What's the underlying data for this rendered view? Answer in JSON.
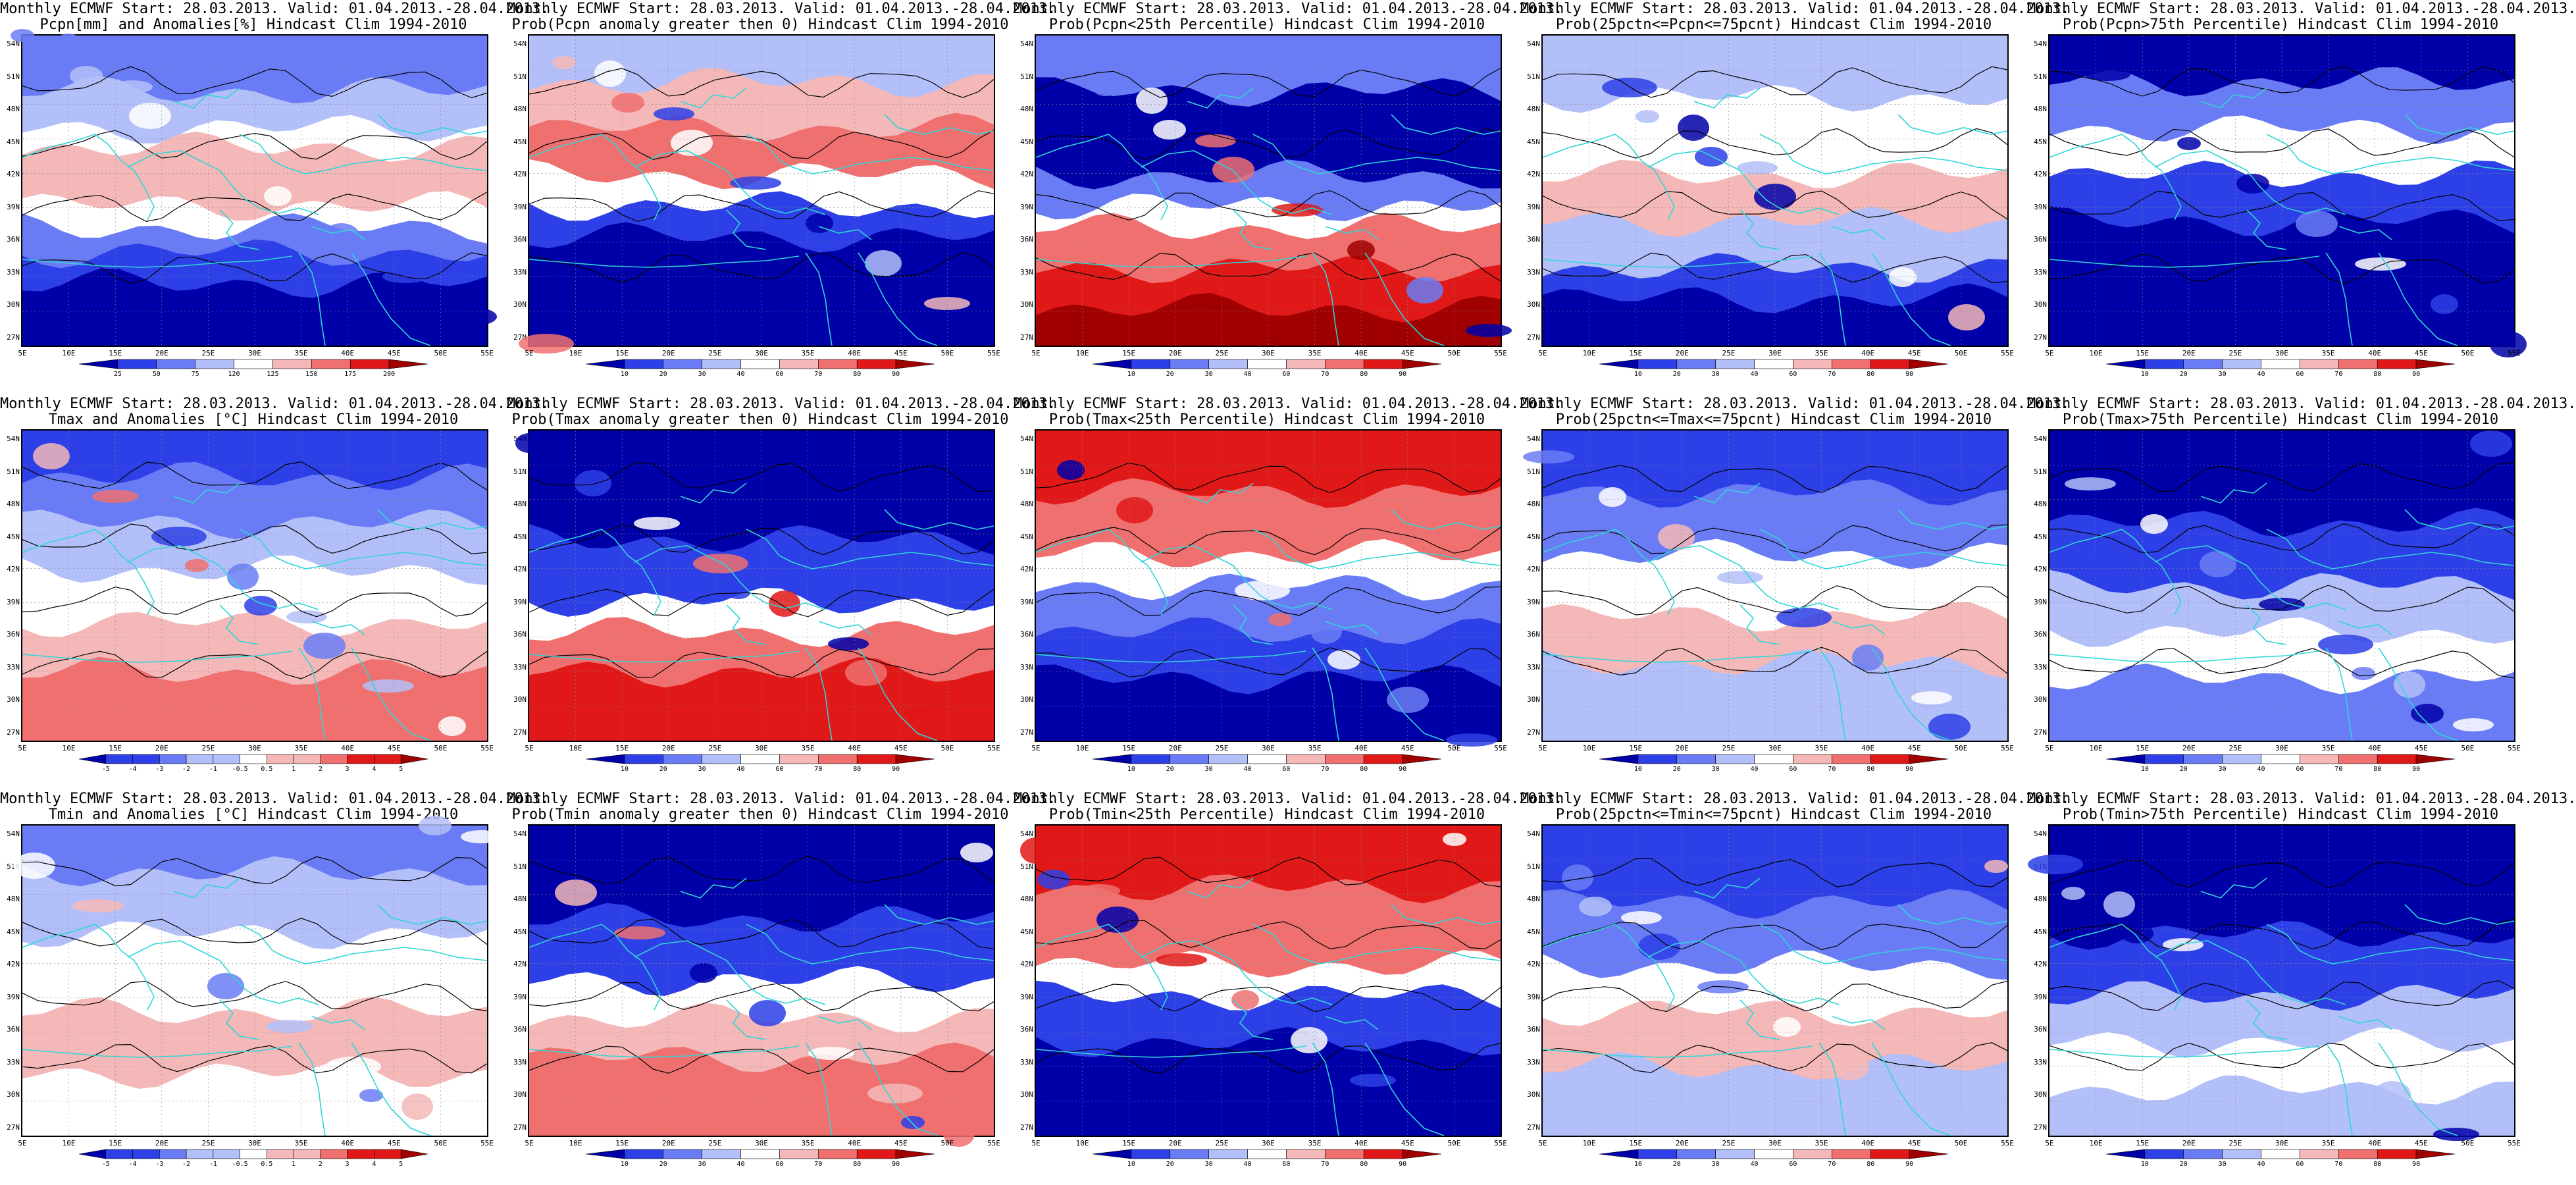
{
  "colors": {
    "deep_blue": "#0000a8",
    "blue": "#2d3fe6",
    "mid_blue": "#6a7cf5",
    "light_blue": "#b3bff8",
    "white": "#ffffff",
    "light_red": "#f5b8b8",
    "mid_red": "#f07070",
    "red": "#e01818",
    "dark_red": "#a00000",
    "coast": "#2fd6d6",
    "contour": "#000000"
  },
  "axes": {
    "lat_labels": [
      "54N",
      "51N",
      "48N",
      "45N",
      "42N",
      "39N",
      "36N",
      "33N",
      "30N",
      "27N"
    ],
    "lon_labels": [
      "5E",
      "10E",
      "15E",
      "20E",
      "25E",
      "30E",
      "35E",
      "40E",
      "45E",
      "50E",
      "55E"
    ]
  },
  "colorbars": {
    "pcpn": [
      "25",
      "50",
      "75",
      "120",
      "125",
      "150",
      "175",
      "200"
    ],
    "prob": [
      "10",
      "20",
      "30",
      "40",
      "60",
      "70",
      "80",
      "90"
    ],
    "temp": [
      "-5",
      "-4",
      "-3",
      "-2",
      "-1",
      "-0.5",
      "0.5",
      "1",
      "2",
      "3",
      "4",
      "5"
    ]
  },
  "panels": [
    {
      "t1": "Monthly ECMWF Start: 28.03.2013. Valid: 01.04.2013.-28.04.2013.",
      "t2": "Pcpn[mm] and Anomalies[%] Hindcast Clim 1994-2010",
      "cb": "pcpn",
      "pattern": "p0"
    },
    {
      "t1": "Monthly ECMWF Start: 28.03.2013. Valid: 01.04.2013.-28.04.2013.",
      "t2": "Prob(Pcpn anomaly greater then 0) Hindcast Clim 1994-2010",
      "cb": "prob",
      "pattern": "p1"
    },
    {
      "t1": "Monthly ECMWF Start: 28.03.2013. Valid: 01.04.2013.-28.04.2013.",
      "t2": "Prob(Pcpn<25th Percentile) Hindcast Clim 1994-2010",
      "cb": "prob",
      "pattern": "p2"
    },
    {
      "t1": "Monthly ECMWF Start: 28.03.2013. Valid: 01.04.2013.-28.04.2013.",
      "t2": "Prob(25pctn<=Pcpn<=75pcnt) Hindcast Clim 1994-2010",
      "cb": "prob",
      "pattern": "p3"
    },
    {
      "t1": "Monthly ECMWF Start: 28.03.2013. Valid: 01.04.2013.-28.04.2013.",
      "t2": "Prob(Pcpn>75th Percentile) Hindcast Clim 1994-2010",
      "cb": "prob",
      "pattern": "p4"
    },
    {
      "t1": "Monthly ECMWF Start: 28.03.2013. Valid: 01.04.2013.-28.04.2013.",
      "t2": "Tmax and Anomalies [°C] Hindcast Clim 1994-2010",
      "cb": "temp",
      "pattern": "t0"
    },
    {
      "t1": "Monthly ECMWF Start: 28.03.2013. Valid: 01.04.2013.-28.04.2013.",
      "t2": "Prob(Tmax anomaly greater then 0) Hindcast Clim 1994-2010",
      "cb": "prob",
      "pattern": "t1"
    },
    {
      "t1": "Monthly ECMWF Start: 28.03.2013. Valid: 01.04.2013.-28.04.2013.",
      "t2": "Prob(Tmax<25th Percentile) Hindcast Clim 1994-2010",
      "cb": "prob",
      "pattern": "t2"
    },
    {
      "t1": "Monthly ECMWF Start: 28.03.2013. Valid: 01.04.2013.-28.04.2013.",
      "t2": "Prob(25pctn<=Tmax<=75pcnt) Hindcast Clim 1994-2010",
      "cb": "prob",
      "pattern": "t3"
    },
    {
      "t1": "Monthly ECMWF Start: 28.03.2013. Valid: 01.04.2013.-28.04.2013.",
      "t2": "Prob(Tmax>75th Percentile) Hindcast Clim 1994-2010",
      "cb": "prob",
      "pattern": "t4"
    },
    {
      "t1": "Monthly ECMWF Start: 28.03.2013. Valid: 01.04.2013.-28.04.2013.",
      "t2": "Tmin and Anomalies [°C] Hindcast Clim 1994-2010",
      "cb": "temp",
      "pattern": "n0"
    },
    {
      "t1": "Monthly ECMWF Start: 28.03.2013. Valid: 01.04.2013.-28.04.2013.",
      "t2": "Prob(Tmin anomaly greater then 0) Hindcast Clim 1994-2010",
      "cb": "prob",
      "pattern": "n1"
    },
    {
      "t1": "Monthly ECMWF Start: 28.03.2013. Valid: 01.04.2013.-28.04.2013.",
      "t2": "Prob(Tmin<25th Percentile) Hindcast Clim 1994-2010",
      "cb": "prob",
      "pattern": "n2"
    },
    {
      "t1": "Monthly ECMWF Start: 28.03.2013. Valid: 01.04.2013.-28.04.2013.",
      "t2": "Prob(25pctn<=Tmin<=75pcnt) Hindcast Clim 1994-2010",
      "cb": "prob",
      "pattern": "n3"
    },
    {
      "t1": "Monthly ECMWF Start: 28.03.2013. Valid: 01.04.2013.-28.04.2013.",
      "t2": "Prob(Tmin>75th Percentile) Hindcast Clim 1994-2010",
      "cb": "prob",
      "pattern": "n4"
    }
  ]
}
